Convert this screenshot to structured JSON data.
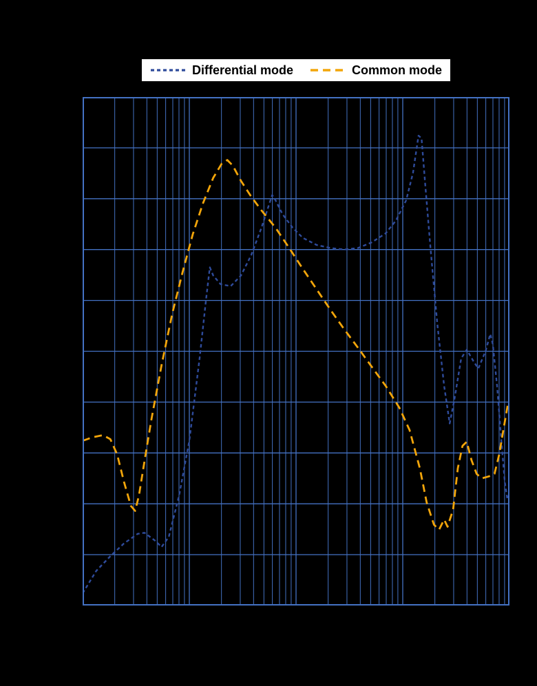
{
  "page": {
    "background": "#000000"
  },
  "legend": {
    "background": "#FFFFFF",
    "border_color": "#000000",
    "text_color": "#000000"
  },
  "chart_data": {
    "type": "line",
    "title": "",
    "xlabel": "",
    "ylabel": "",
    "x_scale": "log",
    "x_range_fraction": [
      0,
      1
    ],
    "y_units_range": [
      0,
      10
    ],
    "grid": {
      "color": "#4472C4",
      "border_color": "#4472C4",
      "x_decades": 4,
      "y_divisions": 10
    },
    "series": [
      {
        "name": "Differential mode",
        "color": "#2E4B9B",
        "dash": "5 4",
        "width": 2.4,
        "points": [
          [
            0.0,
            0.24
          ],
          [
            0.032,
            0.68
          ],
          [
            0.065,
            0.97
          ],
          [
            0.097,
            1.22
          ],
          [
            0.129,
            1.41
          ],
          [
            0.145,
            1.43
          ],
          [
            0.169,
            1.28
          ],
          [
            0.185,
            1.15
          ],
          [
            0.202,
            1.35
          ],
          [
            0.226,
            2.16
          ],
          [
            0.25,
            3.24
          ],
          [
            0.274,
            4.86
          ],
          [
            0.29,
            6.08
          ],
          [
            0.298,
            6.65
          ],
          [
            0.306,
            6.49
          ],
          [
            0.323,
            6.32
          ],
          [
            0.347,
            6.28
          ],
          [
            0.371,
            6.49
          ],
          [
            0.395,
            6.89
          ],
          [
            0.419,
            7.43
          ],
          [
            0.444,
            8.07
          ],
          [
            0.452,
            7.97
          ],
          [
            0.468,
            7.7
          ],
          [
            0.492,
            7.43
          ],
          [
            0.516,
            7.23
          ],
          [
            0.548,
            7.09
          ],
          [
            0.581,
            7.03
          ],
          [
            0.613,
            7.0
          ],
          [
            0.645,
            7.03
          ],
          [
            0.677,
            7.14
          ],
          [
            0.71,
            7.32
          ],
          [
            0.734,
            7.57
          ],
          [
            0.758,
            7.97
          ],
          [
            0.774,
            8.51
          ],
          [
            0.787,
            9.24
          ],
          [
            0.794,
            9.19
          ],
          [
            0.803,
            8.24
          ],
          [
            0.815,
            7.03
          ],
          [
            0.831,
            5.54
          ],
          [
            0.847,
            4.32
          ],
          [
            0.86,
            3.58
          ],
          [
            0.871,
            4.05
          ],
          [
            0.887,
            4.86
          ],
          [
            0.9,
            5.03
          ],
          [
            0.916,
            4.8
          ],
          [
            0.927,
            4.66
          ],
          [
            0.944,
            5.0
          ],
          [
            0.955,
            5.34
          ],
          [
            0.961,
            5.14
          ],
          [
            0.971,
            4.32
          ],
          [
            0.981,
            3.24
          ],
          [
            0.989,
            2.43
          ],
          [
            0.995,
            2.09
          ],
          [
            1.0,
            2.19
          ]
        ]
      },
      {
        "name": "Common mode",
        "color": "#F2A50A",
        "dash": "11 7",
        "width": 2.8,
        "points": [
          [
            0.0,
            3.24
          ],
          [
            0.024,
            3.31
          ],
          [
            0.048,
            3.35
          ],
          [
            0.065,
            3.27
          ],
          [
            0.081,
            2.97
          ],
          [
            0.097,
            2.43
          ],
          [
            0.113,
            1.96
          ],
          [
            0.123,
            1.86
          ],
          [
            0.132,
            2.16
          ],
          [
            0.145,
            2.84
          ],
          [
            0.161,
            3.65
          ],
          [
            0.185,
            4.73
          ],
          [
            0.21,
            5.74
          ],
          [
            0.234,
            6.55
          ],
          [
            0.258,
            7.3
          ],
          [
            0.282,
            7.91
          ],
          [
            0.306,
            8.41
          ],
          [
            0.326,
            8.69
          ],
          [
            0.339,
            8.76
          ],
          [
            0.352,
            8.65
          ],
          [
            0.371,
            8.35
          ],
          [
            0.395,
            8.04
          ],
          [
            0.419,
            7.77
          ],
          [
            0.452,
            7.43
          ],
          [
            0.484,
            7.03
          ],
          [
            0.516,
            6.62
          ],
          [
            0.548,
            6.22
          ],
          [
            0.581,
            5.81
          ],
          [
            0.613,
            5.43
          ],
          [
            0.645,
            5.07
          ],
          [
            0.677,
            4.7
          ],
          [
            0.71,
            4.32
          ],
          [
            0.742,
            3.89
          ],
          [
            0.766,
            3.45
          ],
          [
            0.79,
            2.7
          ],
          [
            0.806,
            2.03
          ],
          [
            0.823,
            1.59
          ],
          [
            0.835,
            1.49
          ],
          [
            0.847,
            1.69
          ],
          [
            0.855,
            1.55
          ],
          [
            0.868,
            1.89
          ],
          [
            0.879,
            2.7
          ],
          [
            0.89,
            3.14
          ],
          [
            0.9,
            3.22
          ],
          [
            0.911,
            2.86
          ],
          [
            0.923,
            2.59
          ],
          [
            0.935,
            2.5
          ],
          [
            0.952,
            2.54
          ],
          [
            0.965,
            2.59
          ],
          [
            0.976,
            2.97
          ],
          [
            0.987,
            3.51
          ],
          [
            0.997,
            3.99
          ]
        ]
      }
    ]
  }
}
